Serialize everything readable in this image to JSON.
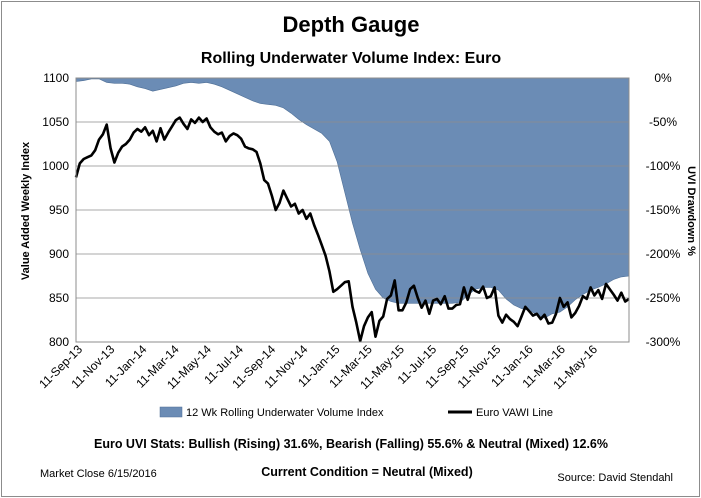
{
  "chart_data": {
    "type": "area+line",
    "title": "Depth Gauge",
    "subtitle": "Rolling Underwater Volume Index: Euro",
    "ylabel_left": "Value Added Weekly Index",
    "ylabel_right": "UVI Drawdown %",
    "ylim_left": [
      800,
      1100
    ],
    "ylim_right": [
      -300,
      0
    ],
    "yticks_left": [
      "1100",
      "1050",
      "1000",
      "950",
      "900",
      "850",
      "800"
    ],
    "yticks_right": [
      "0%",
      "-50%",
      "-100%",
      "-150%",
      "-200%",
      "-250%",
      "-300%"
    ],
    "x_ticks": [
      "11-Sep-13",
      "11-Nov-13",
      "11-Jan-14",
      "11-Mar-14",
      "11-May-14",
      "11-Jul-14",
      "11-Sep-14",
      "11-Nov-14",
      "11-Jan-15",
      "11-Mar-15",
      "11-May-15",
      "11-Jul-15",
      "11-Sep-15",
      "11-Nov-15",
      "11-Jan-16",
      "11-Mar-16",
      "11-May-16"
    ],
    "grid": true,
    "legend_position": "bottom",
    "series": [
      {
        "name": "12 Wk Rolling Underwater Volume Index",
        "type": "area",
        "axis": "right",
        "color": "#6b8cb5",
        "points": [
          [
            "2013-09-11",
            -4
          ],
          [
            "2013-09-25",
            -3
          ],
          [
            "2013-10-09",
            -1
          ],
          [
            "2013-10-23",
            -1
          ],
          [
            "2013-11-06",
            -5
          ],
          [
            "2013-11-20",
            -6
          ],
          [
            "2013-12-04",
            -6
          ],
          [
            "2013-12-18",
            -7
          ],
          [
            "2014-01-01",
            -10
          ],
          [
            "2014-01-15",
            -12
          ],
          [
            "2014-01-29",
            -15
          ],
          [
            "2014-02-12",
            -13
          ],
          [
            "2014-02-26",
            -11
          ],
          [
            "2014-03-12",
            -9
          ],
          [
            "2014-03-26",
            -6
          ],
          [
            "2014-04-09",
            -5
          ],
          [
            "2014-04-23",
            -6
          ],
          [
            "2014-05-07",
            -5
          ],
          [
            "2014-05-21",
            -7
          ],
          [
            "2014-06-04",
            -10
          ],
          [
            "2014-06-18",
            -14
          ],
          [
            "2014-07-02",
            -18
          ],
          [
            "2014-07-16",
            -22
          ],
          [
            "2014-07-30",
            -26
          ],
          [
            "2014-08-13",
            -29
          ],
          [
            "2014-08-27",
            -30
          ],
          [
            "2014-09-10",
            -31
          ],
          [
            "2014-09-24",
            -34
          ],
          [
            "2014-10-08",
            -40
          ],
          [
            "2014-10-22",
            -47
          ],
          [
            "2014-11-05",
            -53
          ],
          [
            "2014-11-19",
            -58
          ],
          [
            "2014-12-03",
            -63
          ],
          [
            "2014-12-17",
            -72
          ],
          [
            "2014-12-31",
            -95
          ],
          [
            "2015-01-14",
            -130
          ],
          [
            "2015-01-28",
            -165
          ],
          [
            "2015-02-11",
            -195
          ],
          [
            "2015-02-25",
            -222
          ],
          [
            "2015-03-11",
            -240
          ],
          [
            "2015-03-25",
            -250
          ],
          [
            "2015-04-08",
            -254
          ],
          [
            "2015-04-22",
            -256
          ],
          [
            "2015-05-06",
            -256
          ],
          [
            "2015-05-20",
            -256
          ],
          [
            "2015-06-03",
            -256
          ],
          [
            "2015-06-17",
            -256
          ],
          [
            "2015-07-01",
            -256
          ],
          [
            "2015-07-15",
            -256
          ],
          [
            "2015-07-29",
            -256
          ],
          [
            "2015-08-12",
            -255
          ],
          [
            "2015-08-26",
            -247
          ],
          [
            "2015-09-09",
            -240
          ],
          [
            "2015-09-23",
            -238
          ],
          [
            "2015-10-07",
            -238
          ],
          [
            "2015-10-21",
            -241
          ],
          [
            "2015-11-04",
            -251
          ],
          [
            "2015-11-18",
            -258
          ],
          [
            "2015-12-02",
            -262
          ],
          [
            "2015-12-16",
            -264
          ],
          [
            "2015-12-30",
            -269
          ],
          [
            "2016-01-13",
            -273
          ],
          [
            "2016-01-27",
            -268
          ],
          [
            "2016-02-10",
            -266
          ],
          [
            "2016-02-24",
            -260
          ],
          [
            "2016-03-09",
            -252
          ],
          [
            "2016-03-23",
            -246
          ],
          [
            "2016-04-06",
            -241
          ],
          [
            "2016-04-20",
            -238
          ],
          [
            "2016-05-04",
            -234
          ],
          [
            "2016-05-18",
            -229
          ],
          [
            "2016-06-01",
            -226
          ],
          [
            "2016-06-15",
            -225
          ]
        ]
      },
      {
        "name": "Euro VAWI Line",
        "type": "line",
        "axis": "left",
        "color": "#000000",
        "points": [
          [
            "2013-09-11",
            987
          ],
          [
            "2013-09-18",
            1003
          ],
          [
            "2013-09-25",
            1008
          ],
          [
            "2013-10-02",
            1010
          ],
          [
            "2013-10-09",
            1012
          ],
          [
            "2013-10-16",
            1018
          ],
          [
            "2013-10-23",
            1030
          ],
          [
            "2013-10-30",
            1036
          ],
          [
            "2013-11-06",
            1047
          ],
          [
            "2013-11-13",
            1020
          ],
          [
            "2013-11-20",
            1004
          ],
          [
            "2013-11-27",
            1015
          ],
          [
            "2013-12-04",
            1022
          ],
          [
            "2013-12-11",
            1025
          ],
          [
            "2013-12-18",
            1030
          ],
          [
            "2013-12-25",
            1038
          ],
          [
            "2014-01-01",
            1042
          ],
          [
            "2014-01-08",
            1039
          ],
          [
            "2014-01-15",
            1044
          ],
          [
            "2014-01-22",
            1035
          ],
          [
            "2014-01-29",
            1040
          ],
          [
            "2014-02-05",
            1028
          ],
          [
            "2014-02-12",
            1043
          ],
          [
            "2014-02-19",
            1030
          ],
          [
            "2014-02-26",
            1038
          ],
          [
            "2014-03-05",
            1045
          ],
          [
            "2014-03-12",
            1052
          ],
          [
            "2014-03-19",
            1055
          ],
          [
            "2014-03-26",
            1048
          ],
          [
            "2014-04-02",
            1042
          ],
          [
            "2014-04-09",
            1053
          ],
          [
            "2014-04-16",
            1049
          ],
          [
            "2014-04-23",
            1055
          ],
          [
            "2014-04-30",
            1050
          ],
          [
            "2014-05-07",
            1054
          ],
          [
            "2014-05-14",
            1044
          ],
          [
            "2014-05-21",
            1039
          ],
          [
            "2014-05-28",
            1036
          ],
          [
            "2014-06-04",
            1038
          ],
          [
            "2014-06-11",
            1028
          ],
          [
            "2014-06-18",
            1034
          ],
          [
            "2014-06-25",
            1037
          ],
          [
            "2014-07-02",
            1035
          ],
          [
            "2014-07-09",
            1031
          ],
          [
            "2014-07-16",
            1022
          ],
          [
            "2014-07-23",
            1020
          ],
          [
            "2014-07-30",
            1019
          ],
          [
            "2014-08-06",
            1016
          ],
          [
            "2014-08-13",
            1003
          ],
          [
            "2014-08-20",
            984
          ],
          [
            "2014-08-27",
            980
          ],
          [
            "2014-09-03",
            966
          ],
          [
            "2014-09-10",
            950
          ],
          [
            "2014-09-17",
            958
          ],
          [
            "2014-09-24",
            972
          ],
          [
            "2014-10-01",
            963
          ],
          [
            "2014-10-08",
            954
          ],
          [
            "2014-10-15",
            957
          ],
          [
            "2014-10-22",
            946
          ],
          [
            "2014-10-29",
            950
          ],
          [
            "2014-11-05",
            940
          ],
          [
            "2014-11-12",
            946
          ],
          [
            "2014-11-19",
            933
          ],
          [
            "2014-11-26",
            922
          ],
          [
            "2014-12-03",
            910
          ],
          [
            "2014-12-10",
            898
          ],
          [
            "2014-12-17",
            880
          ],
          [
            "2014-12-24",
            857
          ],
          [
            "2014-12-31",
            860
          ],
          [
            "2015-01-07",
            864
          ],
          [
            "2015-01-14",
            868
          ],
          [
            "2015-01-21",
            869
          ],
          [
            "2015-01-28",
            840
          ],
          [
            "2015-02-04",
            822
          ],
          [
            "2015-02-11",
            801
          ],
          [
            "2015-02-18",
            818
          ],
          [
            "2015-02-25",
            828
          ],
          [
            "2015-03-04",
            834
          ],
          [
            "2015-03-11",
            806
          ],
          [
            "2015-03-18",
            824
          ],
          [
            "2015-03-25",
            829
          ],
          [
            "2015-04-01",
            849
          ],
          [
            "2015-04-08",
            853
          ],
          [
            "2015-04-15",
            870
          ],
          [
            "2015-04-22",
            836
          ],
          [
            "2015-04-29",
            836
          ],
          [
            "2015-05-06",
            845
          ],
          [
            "2015-05-13",
            860
          ],
          [
            "2015-05-20",
            864
          ],
          [
            "2015-05-27",
            850
          ],
          [
            "2015-06-03",
            839
          ],
          [
            "2015-06-10",
            847
          ],
          [
            "2015-06-17",
            832
          ],
          [
            "2015-06-24",
            847
          ],
          [
            "2015-07-01",
            849
          ],
          [
            "2015-07-08",
            843
          ],
          [
            "2015-07-15",
            852
          ],
          [
            "2015-07-22",
            838
          ],
          [
            "2015-07-29",
            838
          ],
          [
            "2015-08-05",
            842
          ],
          [
            "2015-08-12",
            843
          ],
          [
            "2015-08-19",
            862
          ],
          [
            "2015-08-26",
            848
          ],
          [
            "2015-09-02",
            862
          ],
          [
            "2015-09-09",
            858
          ],
          [
            "2015-09-16",
            856
          ],
          [
            "2015-09-23",
            863
          ],
          [
            "2015-09-30",
            850
          ],
          [
            "2015-10-07",
            852
          ],
          [
            "2015-10-14",
            862
          ],
          [
            "2015-10-21",
            830
          ],
          [
            "2015-10-28",
            822
          ],
          [
            "2015-11-04",
            831
          ],
          [
            "2015-11-11",
            826
          ],
          [
            "2015-11-18",
            823
          ],
          [
            "2015-11-25",
            818
          ],
          [
            "2015-12-02",
            829
          ],
          [
            "2015-12-09",
            840
          ],
          [
            "2015-12-16",
            835
          ],
          [
            "2015-12-23",
            830
          ],
          [
            "2015-12-30",
            832
          ],
          [
            "2016-01-06",
            826
          ],
          [
            "2016-01-13",
            831
          ],
          [
            "2016-01-20",
            821
          ],
          [
            "2016-01-27",
            822
          ],
          [
            "2016-02-03",
            832
          ],
          [
            "2016-02-10",
            850
          ],
          [
            "2016-02-17",
            840
          ],
          [
            "2016-02-24",
            845
          ],
          [
            "2016-03-02",
            828
          ],
          [
            "2016-03-09",
            833
          ],
          [
            "2016-03-16",
            841
          ],
          [
            "2016-03-23",
            852
          ],
          [
            "2016-03-30",
            849
          ],
          [
            "2016-04-06",
            862
          ],
          [
            "2016-04-13",
            853
          ],
          [
            "2016-04-20",
            859
          ],
          [
            "2016-04-27",
            849
          ],
          [
            "2016-05-04",
            866
          ],
          [
            "2016-05-11",
            860
          ],
          [
            "2016-05-18",
            854
          ],
          [
            "2016-05-25",
            847
          ],
          [
            "2016-06-01",
            856
          ],
          [
            "2016-06-08",
            846
          ],
          [
            "2016-06-15",
            849
          ]
        ]
      }
    ]
  },
  "stats_text": "Euro UVI Stats:  Bullish (Rising) 31.6%, Bearish (Falling) 55.6% & Neutral (Mixed) 12.6%",
  "market_close": "Market Close 6/15/2016",
  "current_condition": "Current Condition = Neutral (Mixed)",
  "source": "Source: David Stendahl"
}
